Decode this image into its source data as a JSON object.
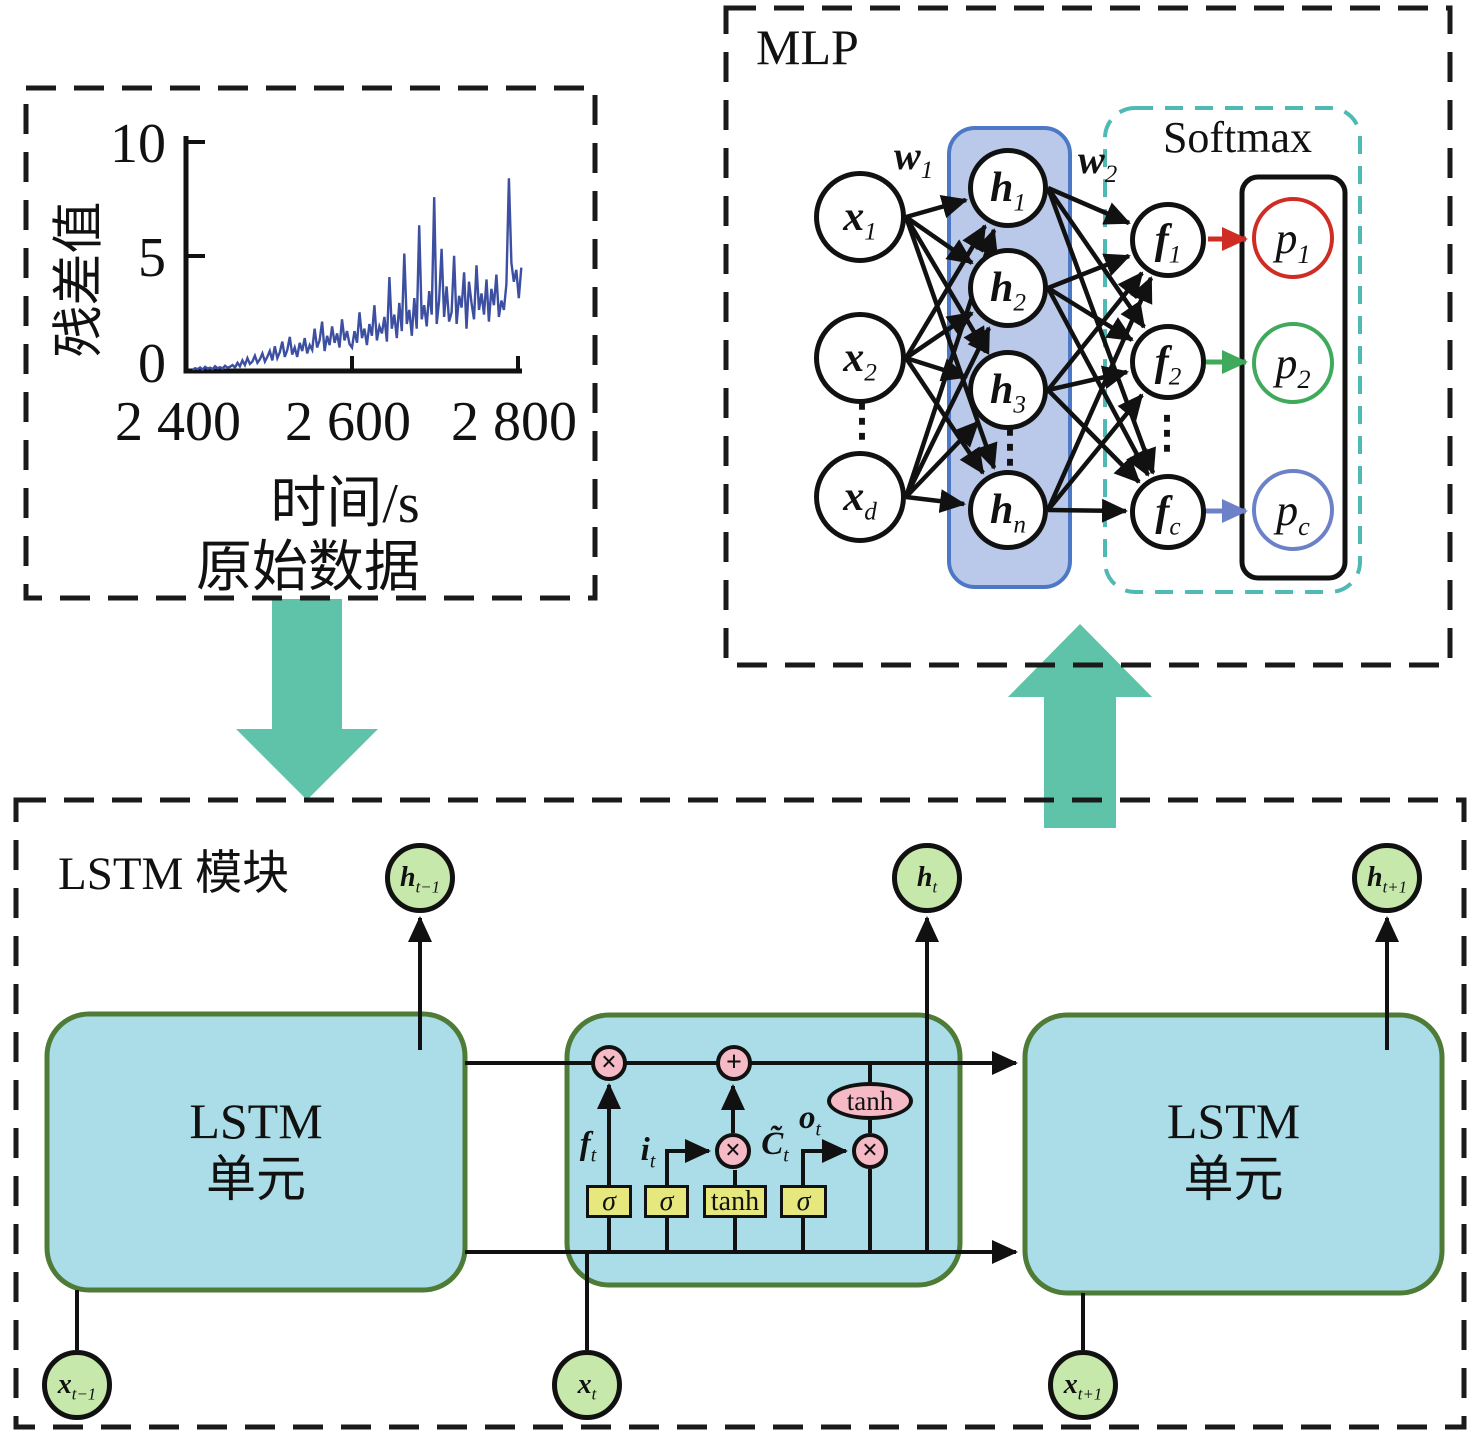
{
  "raw_data_panel": {
    "ylabel": "残差值",
    "yticks": [
      "10",
      "5",
      "0"
    ],
    "xticks": [
      "2 400",
      "2 600",
      "2 800"
    ],
    "xlabel": "时间/s",
    "caption": "原始数据"
  },
  "chart_data": {
    "type": "line",
    "title": "",
    "xlabel": "时间/s",
    "ylabel": "残差值",
    "xlim": [
      2400,
      2810
    ],
    "ylim": [
      0,
      10
    ],
    "x_ticks": [
      2400,
      2600,
      2800
    ],
    "y_ticks": [
      0,
      5,
      10
    ],
    "grid": false,
    "legend_position": "none",
    "series": [
      {
        "name": "残差值",
        "color": "#3d4fa1",
        "points": [
          [
            2408,
            0.05
          ],
          [
            2411,
            0.12
          ],
          [
            2414,
            0.08
          ],
          [
            2417,
            0.15
          ],
          [
            2420,
            0.06
          ],
          [
            2423,
            0.18
          ],
          [
            2426,
            0.1
          ],
          [
            2429,
            0.14
          ],
          [
            2432,
            0.08
          ],
          [
            2435,
            0.2
          ],
          [
            2438,
            0.12
          ],
          [
            2441,
            0.16
          ],
          [
            2444,
            0.1
          ],
          [
            2447,
            0.22
          ],
          [
            2450,
            0.14
          ],
          [
            2453,
            0.18
          ],
          [
            2456,
            0.25
          ],
          [
            2459,
            0.15
          ],
          [
            2462,
            0.35
          ],
          [
            2465,
            0.2
          ],
          [
            2468,
            0.45
          ],
          [
            2471,
            0.25
          ],
          [
            2474,
            0.55
          ],
          [
            2477,
            0.3
          ],
          [
            2480,
            0.4
          ],
          [
            2483,
            0.65
          ],
          [
            2486,
            0.35
          ],
          [
            2489,
            0.5
          ],
          [
            2492,
            0.75
          ],
          [
            2495,
            0.4
          ],
          [
            2498,
            0.6
          ],
          [
            2501,
            0.85
          ],
          [
            2504,
            0.45
          ],
          [
            2507,
            1.05
          ],
          [
            2510,
            0.55
          ],
          [
            2513,
            0.8
          ],
          [
            2516,
            1.25
          ],
          [
            2519,
            0.6
          ],
          [
            2522,
            0.9
          ],
          [
            2525,
            1.45
          ],
          [
            2528,
            0.7
          ],
          [
            2531,
            1.0
          ],
          [
            2534,
            0.6
          ],
          [
            2537,
            1.2
          ],
          [
            2540,
            0.85
          ],
          [
            2543,
            1.4
          ],
          [
            2546,
            0.75
          ],
          [
            2549,
            1.1
          ],
          [
            2552,
            0.9
          ],
          [
            2555,
            1.8
          ],
          [
            2558,
            1.0
          ],
          [
            2561,
            1.3
          ],
          [
            2564,
            2.1
          ],
          [
            2567,
            0.85
          ],
          [
            2570,
            1.5
          ],
          [
            2573,
            1.1
          ],
          [
            2576,
            1.9
          ],
          [
            2579,
            1.2
          ],
          [
            2582,
            1.6
          ],
          [
            2585,
            1.0
          ],
          [
            2588,
            2.2
          ],
          [
            2591,
            1.3
          ],
          [
            2594,
            1.7
          ],
          [
            2597,
            1.15
          ],
          [
            2600,
            1.0
          ],
          [
            2603,
            1.7
          ],
          [
            2606,
            1.2
          ],
          [
            2609,
            2.5
          ],
          [
            2612,
            1.4
          ],
          [
            2615,
            1.8
          ],
          [
            2618,
            1.1
          ],
          [
            2621,
            2.0
          ],
          [
            2624,
            1.5
          ],
          [
            2627,
            2.8
          ],
          [
            2630,
            1.3
          ],
          [
            2633,
            1.9
          ],
          [
            2636,
            1.6
          ],
          [
            2639,
            2.3
          ],
          [
            2642,
            1.25
          ],
          [
            2645,
            4.0
          ],
          [
            2648,
            1.8
          ],
          [
            2651,
            2.4
          ],
          [
            2654,
            1.4
          ],
          [
            2657,
            2.9
          ],
          [
            2660,
            1.7
          ],
          [
            2663,
            5.0
          ],
          [
            2666,
            2.0
          ],
          [
            2669,
            2.6
          ],
          [
            2672,
            1.5
          ],
          [
            2675,
            3.1
          ],
          [
            2678,
            1.8
          ],
          [
            2681,
            6.2
          ],
          [
            2684,
            2.2
          ],
          [
            2687,
            2.8
          ],
          [
            2690,
            1.9
          ],
          [
            2693,
            3.4
          ],
          [
            2696,
            2.4
          ],
          [
            2699,
            7.4
          ],
          [
            2702,
            2.0
          ],
          [
            2705,
            3.0
          ],
          [
            2708,
            5.2
          ],
          [
            2711,
            2.3
          ],
          [
            2714,
            3.6
          ],
          [
            2717,
            2.1
          ],
          [
            2720,
            2.5
          ],
          [
            2723,
            4.9
          ],
          [
            2726,
            2.0
          ],
          [
            2729,
            3.2
          ],
          [
            2732,
            2.7
          ],
          [
            2735,
            4.2
          ],
          [
            2738,
            1.8
          ],
          [
            2741,
            3.8
          ],
          [
            2744,
            2.9
          ],
          [
            2747,
            2.2
          ],
          [
            2750,
            4.5
          ],
          [
            2753,
            2.6
          ],
          [
            2756,
            3.3
          ],
          [
            2759,
            2.4
          ],
          [
            2762,
            3.9
          ],
          [
            2765,
            2.1
          ],
          [
            2768,
            3.5
          ],
          [
            2771,
            2.8
          ],
          [
            2774,
            4.1
          ],
          [
            2777,
            2.3
          ],
          [
            2780,
            3.0
          ],
          [
            2783,
            2.6
          ],
          [
            2786,
            3.7
          ],
          [
            2789,
            8.2
          ],
          [
            2792,
            4.6
          ],
          [
            2795,
            3.8
          ],
          [
            2798,
            4.3
          ],
          [
            2801,
            3.1
          ],
          [
            2804,
            4.4
          ]
        ]
      }
    ]
  },
  "mlp": {
    "title": "MLP",
    "softmax_label": "Softmax",
    "w1": {
      "main": "w",
      "sub": "1"
    },
    "w2": {
      "main": "w",
      "sub": "2"
    },
    "inputs": [
      {
        "main": "x",
        "sub": "1"
      },
      {
        "main": "x",
        "sub": "2"
      },
      {
        "main": "x",
        "sub": "d"
      }
    ],
    "hidden": [
      {
        "main": "h",
        "sub": "1"
      },
      {
        "main": "h",
        "sub": "2"
      },
      {
        "main": "h",
        "sub": "3"
      },
      {
        "main": "h",
        "sub": "n"
      }
    ],
    "outputs": [
      {
        "main": "f",
        "sub": "1"
      },
      {
        "main": "f",
        "sub": "2"
      },
      {
        "main": "f",
        "sub": "c"
      }
    ],
    "probs": [
      {
        "main": "p",
        "sub": "1",
        "color": "#cf2d23"
      },
      {
        "main": "p",
        "sub": "2",
        "color": "#3fa95c"
      },
      {
        "main": "p",
        "sub": "c",
        "color": "#6c81c8"
      }
    ],
    "ellipsis": "⋮"
  },
  "lstm": {
    "title": "LSTM 模块",
    "cell_label_line1": "LSTM",
    "cell_label_line2": "单元",
    "h_nodes": [
      {
        "main": "h",
        "sub": "t−1"
      },
      {
        "main": "h",
        "sub": "t"
      },
      {
        "main": "h",
        "sub": "t+1"
      }
    ],
    "x_nodes": [
      {
        "main": "x",
        "sub": "t−1"
      },
      {
        "main": "x",
        "sub": "t"
      },
      {
        "main": "x",
        "sub": "t+1"
      }
    ],
    "gates": {
      "mul": "×",
      "add": "+",
      "sigma1": "σ",
      "sigma2": "σ",
      "tanh_box": "tanh",
      "sigma3": "σ",
      "tanh_ellipse": "tanh",
      "f": {
        "main": "f",
        "sub": "t"
      },
      "i": {
        "main": "i",
        "sub": "t"
      },
      "c": {
        "main": "C̃",
        "sub": "t"
      },
      "o": {
        "main": "o",
        "sub": "t"
      }
    }
  },
  "colors": {
    "flow_arrow": "#5ec3a8",
    "cell_fill": "#abdde8",
    "cell_border": "#4e7b36",
    "node_green": "#c6e8ab",
    "gate_yellow": "#e6e87e",
    "op_pink": "#f5bac5",
    "hidden_rect_fill": "#bac9e9",
    "hidden_rect_border": "#4d78c5",
    "softmax_dash": "#4fb9b4",
    "chart_line": "#3d4fa1",
    "p1_red": "#cf2d23",
    "p2_green": "#3fa95c",
    "pc_blue": "#6c81c8"
  }
}
